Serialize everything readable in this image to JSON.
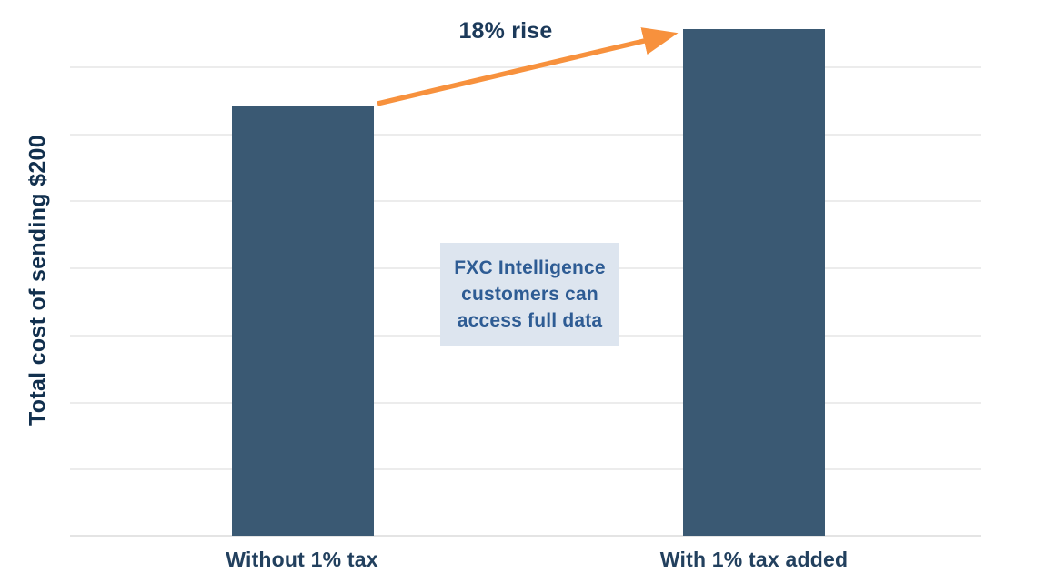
{
  "chart_data": {
    "type": "bar",
    "title": "",
    "categories": [
      "Without 1% tax",
      "With 1% tax added"
    ],
    "values": [
      100,
      118
    ],
    "values_note": "relative cost index estimated from bar heights; no numeric axis ticks shown, right bar is 18% higher than left",
    "xlabel": "",
    "ylabel": "Total cost of sending $200",
    "ylim": [
      0,
      125
    ],
    "grid": "horizontal-light",
    "legend": "none",
    "bar_color": "#3a5973",
    "annotation": "18% rise"
  },
  "annotation": {
    "label": "18% rise"
  },
  "info_box": {
    "lines": [
      "FXC Intelligence",
      "customers can",
      "access full data"
    ],
    "full_text": "FXC Intelligence customers can access full data"
  },
  "colors": {
    "background": "#ffffff",
    "bar": "#3a5973",
    "arrow_orange": "#f7913d",
    "axis_label_text": "#12304e",
    "category_label_text": "#22405e",
    "annotation_text": "#1c3a5a",
    "info_box_background": "#dde5ef",
    "info_box_text": "#2e5c94",
    "gridline": "#ececec"
  }
}
